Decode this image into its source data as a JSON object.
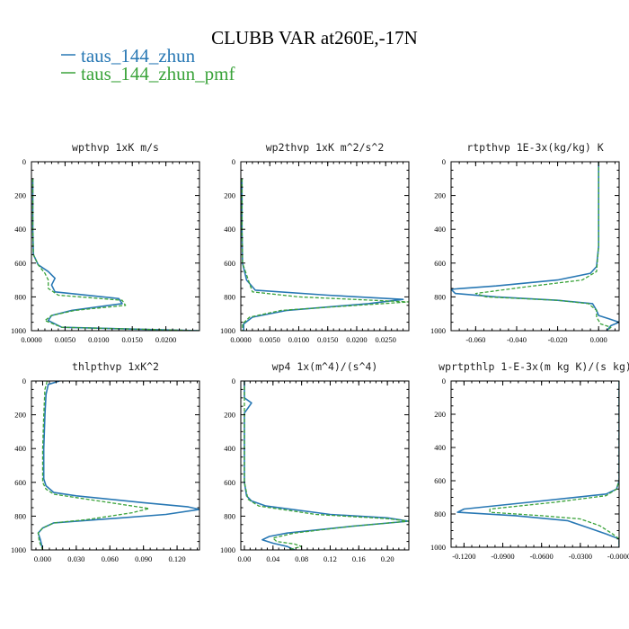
{
  "title": "CLUBB VAR at260E,-17N",
  "legend": [
    {
      "name": "taus_144_zhun",
      "color": "#2878b4",
      "dash": "solid"
    },
    {
      "name": "taus_144_zhun_pmf",
      "color": "#3aa33a",
      "dash": "dashed"
    }
  ],
  "chart_data": [
    {
      "type": "line",
      "title": "wpthvp  1xK m/s",
      "xlim": [
        0,
        0.025
      ],
      "ylim": [
        1000,
        0
      ],
      "xticks": [
        0,
        0.005,
        0.01,
        0.015,
        0.02
      ],
      "xticklabels": [
        "0.0000",
        "0.0050",
        "0.0100",
        "0.0150",
        "0.0200"
      ],
      "yticks": [
        0,
        200,
        400,
        600,
        800,
        1000
      ],
      "yticklabels": [
        "0",
        "200",
        "400",
        "600",
        "800",
        "1000"
      ],
      "series": [
        {
          "name": "taus_144_zhun",
          "points": [
            [
              0.0002,
              100
            ],
            [
              0.0002,
              400
            ],
            [
              0.0003,
              550
            ],
            [
              0.001,
              610
            ],
            [
              0.0025,
              650
            ],
            [
              0.0035,
              690
            ],
            [
              0.003,
              730
            ],
            [
              0.0035,
              770
            ],
            [
              0.013,
              810
            ],
            [
              0.0135,
              840
            ],
            [
              0.006,
              880
            ],
            [
              0.003,
              910
            ],
            [
              0.0025,
              940
            ],
            [
              0.0045,
              980
            ],
            [
              0.025,
              1000
            ]
          ]
        },
        {
          "name": "taus_144_zhun_pmf",
          "points": [
            [
              0.0002,
              100
            ],
            [
              0.0002,
              400
            ],
            [
              0.0003,
              550
            ],
            [
              0.001,
              610
            ],
            [
              0.002,
              660
            ],
            [
              0.0025,
              700
            ],
            [
              0.0025,
              750
            ],
            [
              0.004,
              790
            ],
            [
              0.0135,
              820
            ],
            [
              0.014,
              850
            ],
            [
              0.0065,
              880
            ],
            [
              0.003,
              910
            ],
            [
              0.002,
              940
            ],
            [
              0.0045,
              980
            ],
            [
              0.025,
              1000
            ]
          ]
        }
      ]
    },
    {
      "type": "line",
      "title": "wp2thvp  1xK m^2/s^2",
      "xlim": [
        0,
        0.029
      ],
      "ylim": [
        1000,
        0
      ],
      "xticks": [
        0,
        0.005,
        0.01,
        0.015,
        0.02,
        0.025
      ],
      "xticklabels": [
        "0.0000",
        "0.0050",
        "0.0100",
        "0.0150",
        "0.0200",
        "0.0250"
      ],
      "yticks": [
        0,
        200,
        400,
        600,
        800,
        1000
      ],
      "yticklabels": [
        "0",
        "200",
        "400",
        "600",
        "800",
        "1000"
      ],
      "series": [
        {
          "name": "taus_144_zhun",
          "points": [
            [
              0.0002,
              100
            ],
            [
              0.0002,
              400
            ],
            [
              0.0003,
              600
            ],
            [
              0.001,
              700
            ],
            [
              0.0025,
              760
            ],
            [
              0.015,
              790
            ],
            [
              0.028,
              815
            ],
            [
              0.022,
              840
            ],
            [
              0.008,
              880
            ],
            [
              0.002,
              920
            ],
            [
              0.0005,
              960
            ],
            [
              0.0005,
              1000
            ]
          ]
        },
        {
          "name": "taus_144_zhun_pmf",
          "points": [
            [
              0.0002,
              100
            ],
            [
              0.0002,
              400
            ],
            [
              0.0003,
              600
            ],
            [
              0.0015,
              720
            ],
            [
              0.002,
              770
            ],
            [
              0.01,
              800
            ],
            [
              0.029,
              830
            ],
            [
              0.02,
              850
            ],
            [
              0.007,
              880
            ],
            [
              0.0015,
              920
            ],
            [
              0.0003,
              960
            ],
            [
              0.0003,
              1000
            ]
          ]
        }
      ]
    },
    {
      "type": "line",
      "title": "rtpthvp  1E-3x(kg/kg) K",
      "xlim": [
        -0.072,
        0.01
      ],
      "ylim": [
        1000,
        0
      ],
      "xticks": [
        -0.06,
        -0.04,
        -0.02,
        0
      ],
      "xticklabels": [
        "-0.060",
        "-0.040",
        "-0.020",
        "0.000"
      ],
      "yticks": [
        0,
        200,
        400,
        600,
        800,
        1000
      ],
      "yticklabels": [
        "0",
        "200",
        "400",
        "600",
        "800",
        "1000"
      ],
      "series": [
        {
          "name": "taus_144_zhun",
          "points": [
            [
              0,
              0
            ],
            [
              0,
              300
            ],
            [
              0,
              500
            ],
            [
              -0.001,
              620
            ],
            [
              -0.004,
              660
            ],
            [
              -0.02,
              700
            ],
            [
              -0.05,
              735
            ],
            [
              -0.072,
              755
            ],
            [
              -0.07,
              780
            ],
            [
              -0.05,
              800
            ],
            [
              -0.02,
              820
            ],
            [
              -0.003,
              840
            ],
            [
              -0.001,
              880
            ],
            [
              0.0,
              910
            ],
            [
              0.005,
              930
            ],
            [
              0.01,
              950
            ],
            [
              0.006,
              970
            ],
            [
              0.004,
              1000
            ]
          ]
        },
        {
          "name": "taus_144_zhun_pmf",
          "points": [
            [
              0,
              0
            ],
            [
              0,
              300
            ],
            [
              0,
              500
            ],
            [
              -0.001,
              650
            ],
            [
              -0.008,
              700
            ],
            [
              -0.035,
              740
            ],
            [
              -0.06,
              780
            ],
            [
              -0.055,
              800
            ],
            [
              -0.02,
              820
            ],
            [
              -0.005,
              840
            ],
            [
              -0.001,
              880
            ],
            [
              -0.001,
              920
            ],
            [
              0.001,
              960
            ],
            [
              0.006,
              980
            ],
            [
              0.004,
              1000
            ]
          ]
        }
      ]
    },
    {
      "type": "line",
      "title": "thlpthvp  1xK^2",
      "xlim": [
        -0.01,
        0.14
      ],
      "ylim": [
        1000,
        0
      ],
      "xticks": [
        0,
        0.03,
        0.06,
        0.09,
        0.12
      ],
      "xticklabels": [
        "0.000",
        "0.030",
        "0.060",
        "0.090",
        "0.120"
      ],
      "yticks": [
        0,
        200,
        400,
        600,
        800,
        1000
      ],
      "yticklabels": [
        "0",
        "200",
        "400",
        "600",
        "800",
        "1000"
      ],
      "series": [
        {
          "name": "taus_144_zhun",
          "points": [
            [
              0.015,
              0
            ],
            [
              0.005,
              20
            ],
            [
              0.003,
              80
            ],
            [
              0.002,
              200
            ],
            [
              0.001,
              400
            ],
            [
              0.001,
              580
            ],
            [
              0.003,
              620
            ],
            [
              0.01,
              660
            ],
            [
              0.03,
              680
            ],
            [
              0.09,
              720
            ],
            [
              0.13,
              745
            ],
            [
              0.14,
              760
            ],
            [
              0.11,
              790
            ],
            [
              0.05,
              820
            ],
            [
              0.01,
              840
            ],
            [
              0.0,
              870
            ],
            [
              -0.004,
              900
            ],
            [
              -0.002,
              940
            ],
            [
              0.0,
              1000
            ]
          ]
        },
        {
          "name": "taus_144_zhun_pmf",
          "points": [
            [
              0.004,
              0
            ],
            [
              0.002,
              50
            ],
            [
              0.001,
              200
            ],
            [
              0.0,
              400
            ],
            [
              0.0,
              600
            ],
            [
              0.003,
              640
            ],
            [
              0.01,
              670
            ],
            [
              0.05,
              710
            ],
            [
              0.095,
              755
            ],
            [
              0.08,
              780
            ],
            [
              0.04,
              820
            ],
            [
              0.01,
              840
            ],
            [
              0.0,
              870
            ],
            [
              -0.004,
              900
            ],
            [
              -0.003,
              950
            ],
            [
              0.0,
              1000
            ]
          ]
        }
      ]
    },
    {
      "type": "line",
      "title": "wp4  1x(m^4)/(s^4)",
      "xlim": [
        -0.005,
        0.23
      ],
      "ylim": [
        1000,
        0
      ],
      "xticks": [
        0,
        0.04,
        0.08,
        0.12,
        0.16,
        0.2
      ],
      "xticklabels": [
        "0.00",
        "0.04",
        "0.08",
        "0.12",
        "0.16",
        "0.20"
      ],
      "yticks": [
        0,
        200,
        400,
        600,
        800,
        1000
      ],
      "yticklabels": [
        "0",
        "200",
        "400",
        "600",
        "800",
        "1000"
      ],
      "series": [
        {
          "name": "taus_144_zhun",
          "points": [
            [
              0.0,
              0
            ],
            [
              0.0,
              100
            ],
            [
              0.01,
              130
            ],
            [
              0.005,
              160
            ],
            [
              0.0,
              190
            ],
            [
              0.0,
              400
            ],
            [
              0.0,
              600
            ],
            [
              0.003,
              680
            ],
            [
              0.01,
              710
            ],
            [
              0.03,
              740
            ],
            [
              0.12,
              790
            ],
            [
              0.2,
              810
            ],
            [
              0.23,
              830
            ],
            [
              0.15,
              860
            ],
            [
              0.06,
              900
            ],
            [
              0.035,
              920
            ],
            [
              0.025,
              940
            ],
            [
              0.04,
              960
            ],
            [
              0.06,
              980
            ],
            [
              0.07,
              1000
            ]
          ]
        },
        {
          "name": "taus_144_zhun_pmf",
          "points": [
            [
              0.0,
              0
            ],
            [
              0.0,
              200
            ],
            [
              0.0,
              400
            ],
            [
              0.0,
              600
            ],
            [
              0.005,
              700
            ],
            [
              0.02,
              740
            ],
            [
              0.1,
              790
            ],
            [
              0.2,
              815
            ],
            [
              0.23,
              830
            ],
            [
              0.15,
              860
            ],
            [
              0.07,
              900
            ],
            [
              0.04,
              930
            ],
            [
              0.045,
              950
            ],
            [
              0.07,
              965
            ],
            [
              0.08,
              980
            ],
            [
              0.06,
              1000
            ]
          ]
        }
      ]
    },
    {
      "type": "line",
      "title": "wprtpthlp  1-E-3x(m kg K)/(s kg)",
      "xlim": [
        -0.13,
        0
      ],
      "ylim": [
        1000,
        0
      ],
      "xticks": [
        -0.12,
        -0.09,
        -0.06,
        -0.03,
        0
      ],
      "xticklabels": [
        "-0.1200",
        "-0.0900",
        "-0.0600",
        "-0.0300",
        "-0.0000"
      ],
      "yticks": [
        0,
        200,
        400,
        600,
        800,
        1000
      ],
      "yticklabels": [
        "0",
        "200",
        "400",
        "600",
        "800",
        "1000"
      ],
      "series": [
        {
          "name": "taus_144_zhun",
          "points": [
            [
              0,
              0
            ],
            [
              0,
              300
            ],
            [
              0,
              600
            ],
            [
              -0.002,
              650
            ],
            [
              -0.01,
              680
            ],
            [
              -0.07,
              730
            ],
            [
              -0.12,
              770
            ],
            [
              -0.125,
              790
            ],
            [
              -0.08,
              810
            ],
            [
              -0.04,
              840
            ],
            [
              -0.025,
              880
            ],
            [
              -0.01,
              920
            ],
            [
              0,
              950
            ],
            [
              0,
              1000
            ]
          ]
        },
        {
          "name": "taus_144_zhun_pmf",
          "points": [
            [
              0,
              0
            ],
            [
              0,
              300
            ],
            [
              0,
              600
            ],
            [
              -0.002,
              650
            ],
            [
              -0.01,
              690
            ],
            [
              -0.05,
              730
            ],
            [
              -0.1,
              770
            ],
            [
              -0.1,
              790
            ],
            [
              -0.06,
              810
            ],
            [
              -0.03,
              830
            ],
            [
              -0.015,
              870
            ],
            [
              -0.005,
              920
            ],
            [
              0,
              950
            ],
            [
              0,
              1000
            ]
          ]
        }
      ]
    }
  ]
}
